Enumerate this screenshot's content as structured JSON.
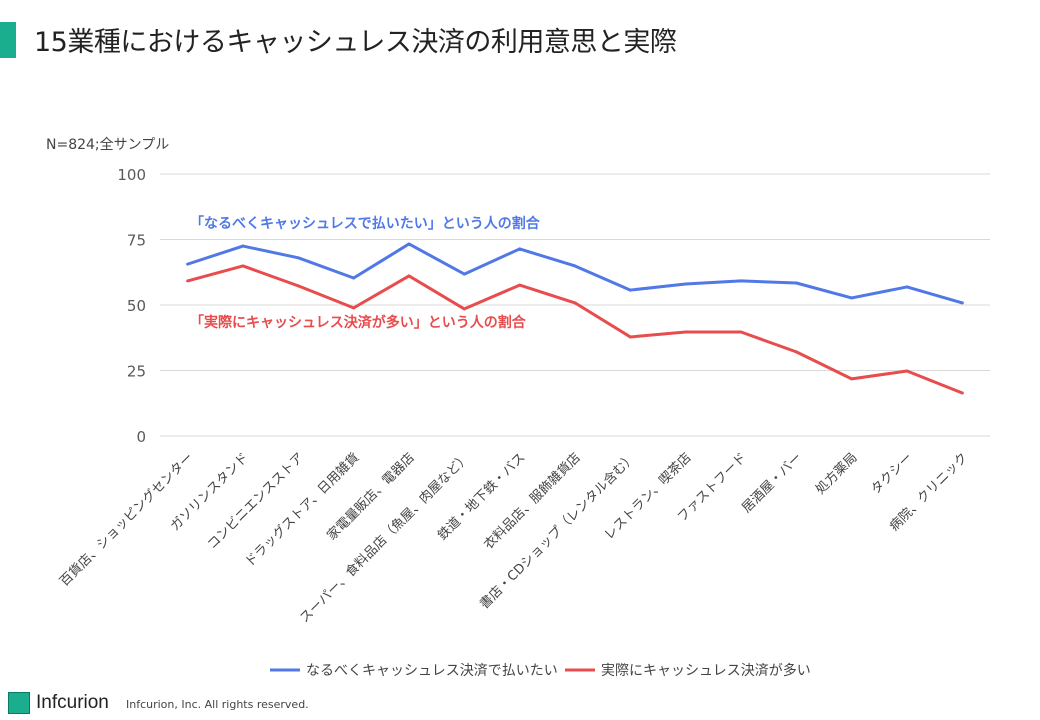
{
  "title": "15業種におけるキャッシュレス決済の利用意思と実際",
  "note": "N=824;全サンプル",
  "footer": {
    "logo": "Infcurion",
    "copyright": "Infcurion, Inc.  All rights reserved."
  },
  "colors": {
    "blue": "#5078e6",
    "red": "#e84c4c",
    "accent": "#1aae8f"
  },
  "chart_data": {
    "type": "line",
    "categories": [
      "百貨店、ショッピングセンター",
      "ガソリンスタンド",
      "コンビニエンスストア",
      "ドラッグストア、日用雑貨",
      "家電量販店、電器店",
      "スーパー、食料品店（魚屋、肉屋など）",
      "鉄道・地下鉄・バス",
      "衣料品店、服飾雑貨店",
      "書店・CDショップ（レンタル含む）",
      "レストラン、喫茶店",
      "ファストフード",
      "居酒屋・バー",
      "処方薬局",
      "タクシー",
      "病院、クリニック"
    ],
    "series": [
      {
        "name": "なるべくキャッシュレス決済で払いたい",
        "annotation": "「なるべくキャッシュレスで払いたい」という人の割合",
        "color": "#5078e6",
        "values": [
          65.6,
          72.5,
          68,
          60.3,
          73.3,
          61.8,
          71.4,
          64.9,
          55.7,
          58,
          59.2,
          58.4,
          52.7,
          56.9,
          50.8
        ]
      },
      {
        "name": "実際にキャッシュレス決済が多い",
        "annotation": "「実際にキャッシュレス決済が多い」という人の割合",
        "color": "#e84c4c",
        "values": [
          59.2,
          64.9,
          57.3,
          48.9,
          61.1,
          48.5,
          57.6,
          50.8,
          37.8,
          39.7,
          39.7,
          32.1,
          21.8,
          24.8,
          16.4
        ]
      }
    ],
    "yticks": [
      0,
      25,
      50,
      75,
      100
    ],
    "ylim": [
      0,
      100
    ],
    "grid": true,
    "legend": "bottom"
  }
}
